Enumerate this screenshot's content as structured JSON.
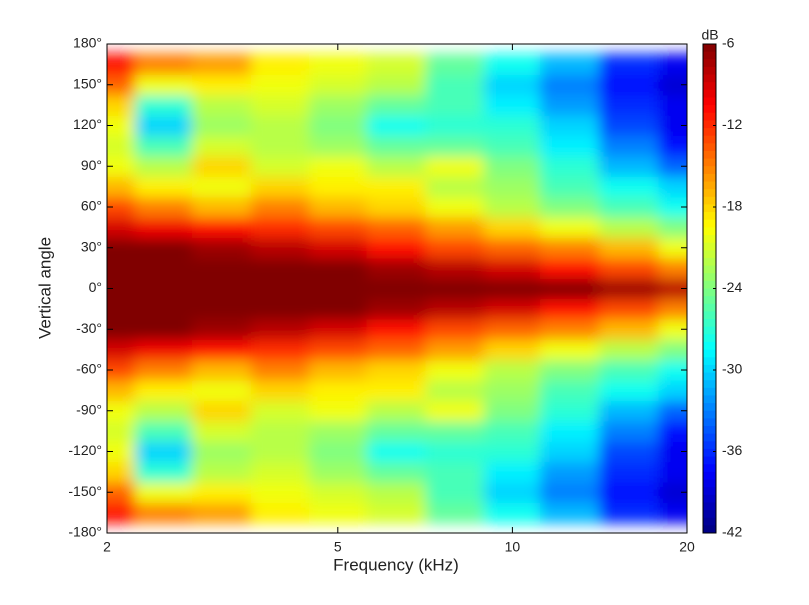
{
  "chart_data": {
    "type": "contour",
    "xlabel": "Frequency (kHz)",
    "ylabel": "Vertical angle",
    "colorbar_label": "dB",
    "xscale": "log",
    "colormap": "jet",
    "xlim": [
      2,
      20
    ],
    "xticks": [
      2,
      5,
      10,
      20
    ],
    "ylim": [
      -180,
      180
    ],
    "yticks": [
      {
        "value": -180,
        "label": "-180°"
      },
      {
        "value": -150,
        "label": "-150°"
      },
      {
        "value": -120,
        "label": "-120°"
      },
      {
        "value": -90,
        "label": "-90°"
      },
      {
        "value": -60,
        "label": "-60°"
      },
      {
        "value": -30,
        "label": "-30°"
      },
      {
        "value": 0,
        "label": "0°"
      },
      {
        "value": 30,
        "label": "30°"
      },
      {
        "value": 60,
        "label": "60°"
      },
      {
        "value": 90,
        "label": "90°"
      },
      {
        "value": 120,
        "label": "120°"
      },
      {
        "value": 150,
        "label": "150°"
      },
      {
        "value": 180,
        "label": "180°"
      }
    ],
    "zlim": [
      -42,
      -6
    ],
    "zticks": [
      -6,
      -12,
      -18,
      -24,
      -30,
      -36,
      -42
    ],
    "x": [
      2,
      2.5,
      3.15,
      4,
      5,
      6.3,
      8,
      10,
      12.5,
      16,
      20
    ],
    "y": [
      -180,
      -165,
      -150,
      -135,
      -120,
      -105,
      -90,
      -75,
      -60,
      -45,
      -30,
      -15,
      0,
      15,
      30,
      45,
      60,
      75,
      90,
      105,
      120,
      135,
      150,
      165,
      180
    ],
    "z": [
      [
        -11,
        -14,
        -16,
        -19,
        -20,
        -22,
        -25,
        -28,
        -31,
        -35,
        -36
      ],
      [
        -11,
        -15,
        -16,
        -19,
        -20,
        -21,
        -25,
        -28,
        -31,
        -36,
        -38
      ],
      [
        -14,
        -20,
        -19,
        -20,
        -21,
        -22,
        -26,
        -30,
        -33,
        -37,
        -39
      ],
      [
        -18,
        -27,
        -22,
        -21,
        -23,
        -25,
        -26,
        -29,
        -32,
        -36,
        -38
      ],
      [
        -20,
        -30,
        -23,
        -22,
        -24,
        -28,
        -27,
        -27,
        -30,
        -35,
        -38
      ],
      [
        -21,
        -26,
        -21,
        -22,
        -23,
        -25,
        -25,
        -26,
        -29,
        -33,
        -37
      ],
      [
        -20,
        -22,
        -18,
        -21,
        -20,
        -22,
        -20,
        -24,
        -27,
        -31,
        -34
      ],
      [
        -17,
        -19,
        -20,
        -18,
        -19,
        -19,
        -22,
        -23,
        -26,
        -28,
        -30
      ],
      [
        -13,
        -15,
        -17,
        -15,
        -17,
        -18,
        -20,
        -22,
        -24,
        -26,
        -28
      ],
      [
        -9,
        -10,
        -11,
        -12,
        -13,
        -14,
        -16,
        -18,
        -20,
        -22,
        -24
      ],
      [
        -6,
        -6,
        -7,
        -8,
        -9,
        -11,
        -13,
        -14,
        -15,
        -17,
        -20
      ],
      [
        -6,
        -6,
        -6,
        -6,
        -6,
        -7,
        -8,
        -9,
        -11,
        -13,
        -15
      ],
      [
        -6,
        -6,
        -6,
        -6,
        -6,
        -6,
        -6,
        -6,
        -6,
        -7,
        -8
      ],
      [
        -6,
        -6,
        -6,
        -6,
        -6,
        -7,
        -8,
        -9,
        -11,
        -13,
        -15
      ],
      [
        -6,
        -6,
        -7,
        -8,
        -9,
        -11,
        -13,
        -14,
        -15,
        -17,
        -20
      ],
      [
        -9,
        -10,
        -11,
        -12,
        -13,
        -14,
        -16,
        -18,
        -20,
        -22,
        -24
      ],
      [
        -13,
        -15,
        -17,
        -15,
        -17,
        -18,
        -20,
        -22,
        -24,
        -26,
        -28
      ],
      [
        -17,
        -19,
        -20,
        -18,
        -19,
        -19,
        -22,
        -23,
        -26,
        -28,
        -30
      ],
      [
        -20,
        -22,
        -18,
        -21,
        -20,
        -22,
        -20,
        -24,
        -27,
        -31,
        -34
      ],
      [
        -21,
        -26,
        -21,
        -22,
        -23,
        -25,
        -25,
        -26,
        -29,
        -33,
        -37
      ],
      [
        -20,
        -30,
        -23,
        -22,
        -24,
        -28,
        -27,
        -27,
        -30,
        -35,
        -38
      ],
      [
        -18,
        -27,
        -22,
        -21,
        -23,
        -25,
        -26,
        -29,
        -32,
        -36,
        -38
      ],
      [
        -14,
        -20,
        -19,
        -20,
        -21,
        -22,
        -26,
        -30,
        -33,
        -37,
        -39
      ],
      [
        -11,
        -15,
        -16,
        -19,
        -20,
        -21,
        -25,
        -28,
        -31,
        -36,
        -38
      ],
      [
        -11,
        -14,
        -16,
        -19,
        -20,
        -22,
        -25,
        -28,
        -31,
        -35,
        -36
      ]
    ]
  }
}
